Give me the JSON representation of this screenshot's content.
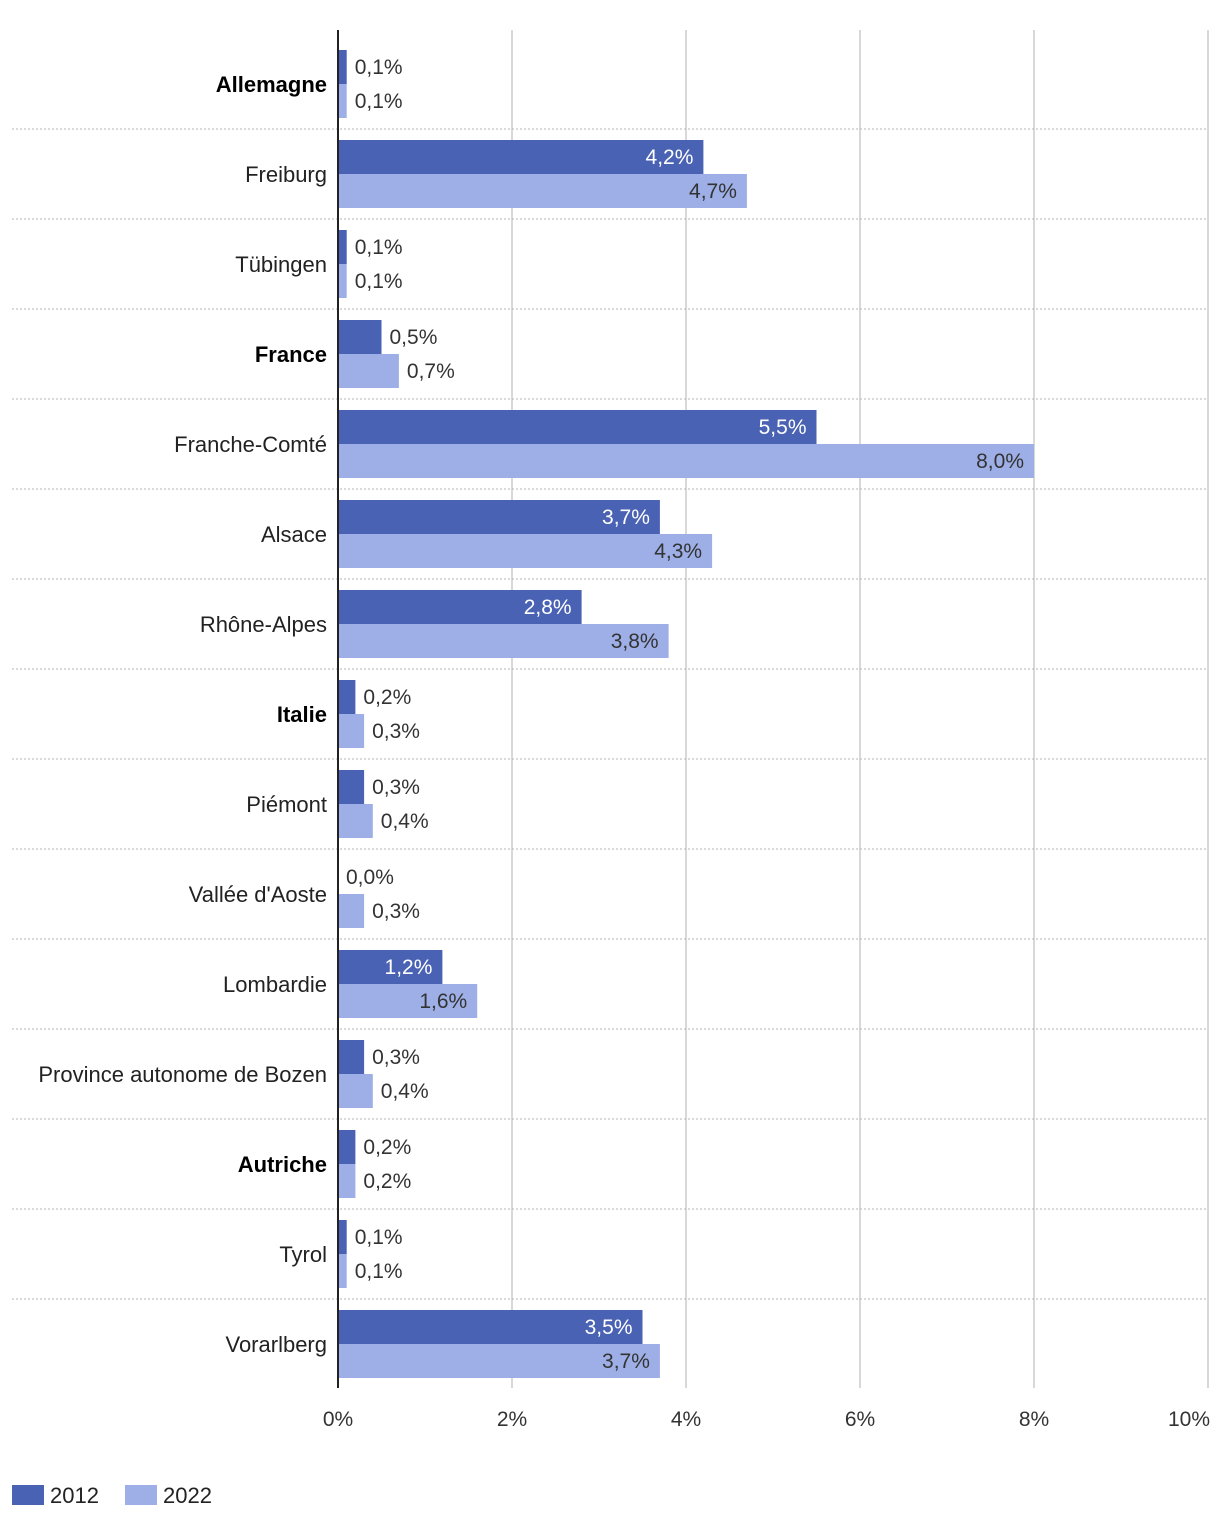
{
  "chart_data": {
    "type": "bar",
    "orientation": "horizontal",
    "title": "",
    "xlabel": "",
    "ylabel": "",
    "xlim": [
      0,
      10
    ],
    "x_ticks": [
      "0%",
      "2%",
      "4%",
      "6%",
      "8%",
      "10%"
    ],
    "grid": true,
    "legend_position": "bottom-left",
    "categories": [
      "Allemagne",
      "Freiburg",
      "Tübingen",
      "France",
      "Franche-Comté",
      "Alsace",
      "Rhône-Alpes",
      "Italie",
      "Piémont",
      "Vallée d'Aoste",
      "Lombardie",
      "Province autonome de Bozen",
      "Autriche",
      "Tyrol",
      "Vorarlberg"
    ],
    "group_headers": [
      "Allemagne",
      "France",
      "Italie",
      "Autriche"
    ],
    "series": [
      {
        "name": "2012",
        "color": "#4a62b3",
        "values": [
          0.1,
          4.2,
          0.1,
          0.5,
          5.5,
          3.7,
          2.8,
          0.2,
          0.3,
          0.0,
          1.2,
          0.3,
          0.2,
          0.1,
          3.5
        ],
        "labels": [
          "0,1%",
          "4,2%",
          "0,1%",
          "0,5%",
          "5,5%",
          "3,7%",
          "2,8%",
          "0,2%",
          "0,3%",
          "0,0%",
          "1,2%",
          "0,3%",
          "0,2%",
          "0,1%",
          "3,5%"
        ]
      },
      {
        "name": "2022",
        "color": "#9dafe6",
        "values": [
          0.1,
          4.7,
          0.1,
          0.7,
          8.0,
          4.3,
          3.8,
          0.3,
          0.4,
          0.3,
          1.6,
          0.4,
          0.2,
          0.1,
          3.7
        ],
        "labels": [
          "0,1%",
          "4,7%",
          "0,1%",
          "0,7%",
          "8,0%",
          "4,3%",
          "3,8%",
          "0,3%",
          "0,4%",
          "0,3%",
          "1,6%",
          "0,4%",
          "0,2%",
          "0,1%",
          "3,7%"
        ]
      }
    ]
  }
}
